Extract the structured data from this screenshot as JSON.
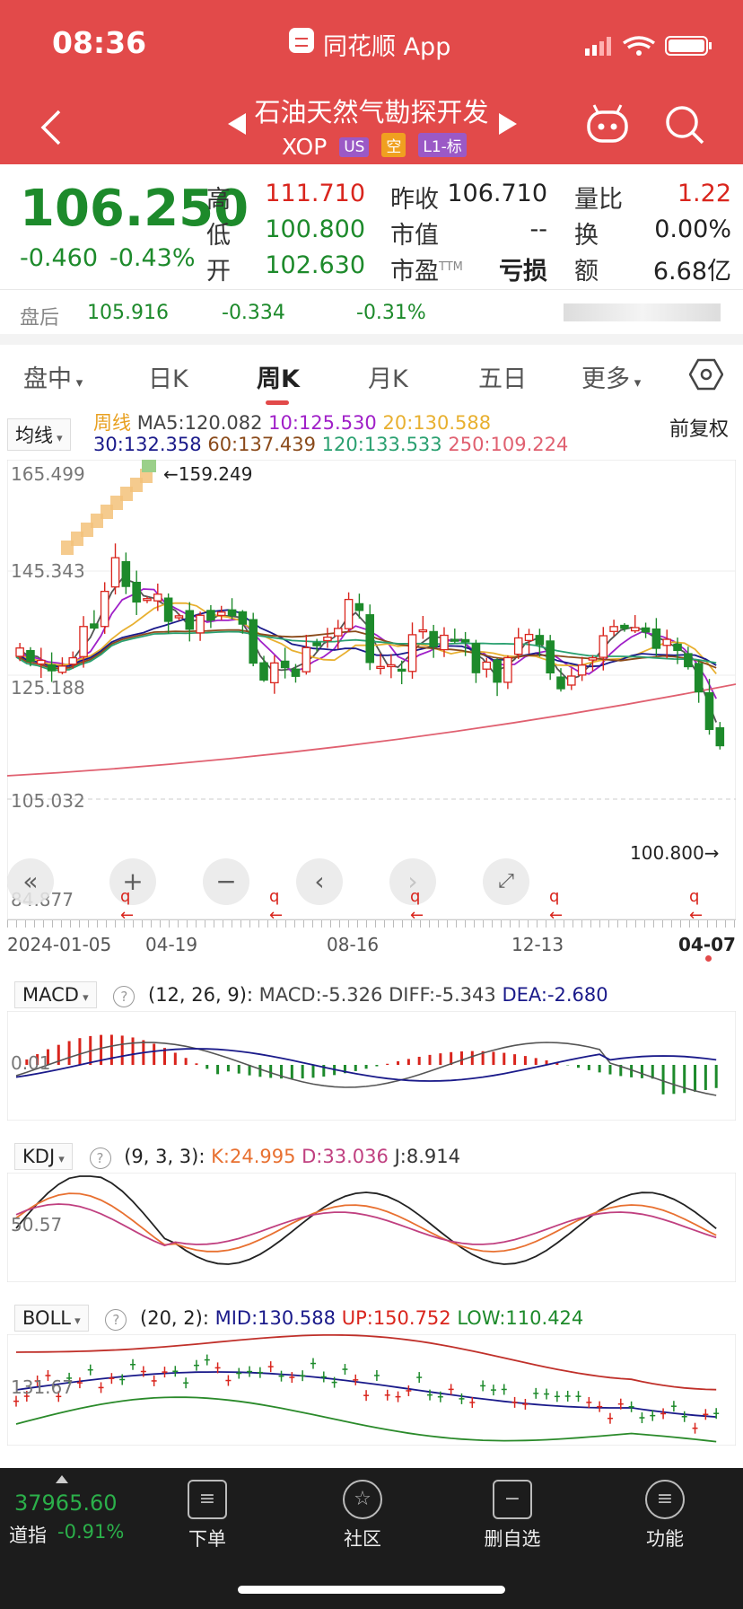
{
  "status": {
    "time": "08:36",
    "app_name": "同花顺 App"
  },
  "header": {
    "back_icon": "chevron-left-icon",
    "prev_icon": "triangle-left-icon",
    "next_icon": "triangle-right-icon",
    "title": "石油天然气勘探开发",
    "ticker": "XOP",
    "tags": [
      "US",
      "空",
      "L1-标"
    ],
    "robot_icon": "robot-icon",
    "search_icon": "search-icon"
  },
  "quote": {
    "price": "106.250",
    "change": "-0.460",
    "change_pct": "-0.43%",
    "high_label": "高",
    "high": "111.710",
    "low_label": "低",
    "low": "100.800",
    "open_label": "开",
    "open": "102.630",
    "prev_close_label": "昨收",
    "prev_close": "106.710",
    "mkt_cap_label": "市值",
    "mkt_cap": "--",
    "pe_label": "市盈",
    "pe_sup": "TTM",
    "pe": "亏损",
    "vol_ratio_label": "量比",
    "vol_ratio": "1.22",
    "turnover_label": "换",
    "turnover": "0.00%",
    "amount_label": "额",
    "amount": "6.68亿"
  },
  "after_hours": {
    "label": "盘后",
    "price": "105.916",
    "change": "-0.334",
    "change_pct": "-0.31%"
  },
  "tabs": {
    "intraday": "盘中",
    "daily": "日K",
    "weekly": "周K",
    "monthly": "月K",
    "five_day": "五日",
    "more": "更多",
    "settings_icon": "hexagon-gear-icon"
  },
  "ma": {
    "selector": "均线",
    "period": "周线",
    "ma5": "MA5:120.082",
    "ma10": "10:125.530",
    "ma20": "20:130.588",
    "ma30": "30:132.358",
    "ma60": "60:137.439",
    "ma120": "120:133.533",
    "ma250": "250:109.224",
    "adjust": "前复权"
  },
  "price_axis": {
    "y1": "165.499",
    "y2": "145.343",
    "y3": "125.188",
    "y4": "105.032",
    "y5": "84.877"
  },
  "annotations": {
    "high": "159.249",
    "low": "100.800"
  },
  "date_axis": {
    "d1": "2024-01-05",
    "d2": "04-19",
    "d3": "08-16",
    "d4": "12-13",
    "d5": "04-07"
  },
  "macd": {
    "selector": "MACD",
    "params": "(12, 26, 9):",
    "macd": "MACD:-5.326",
    "diff": "DIFF:-5.343",
    "dea": "DEA:-2.680",
    "axis": "0.01"
  },
  "kdj": {
    "selector": "KDJ",
    "params": "(9, 3, 3):",
    "k": "K:24.995",
    "d": "D:33.036",
    "j": "J:8.914",
    "axis": "50.57"
  },
  "boll": {
    "selector": "BOLL",
    "params": "(20, 2):",
    "mid": "MID:130.588",
    "up": "UP:150.752",
    "low": "LOW:110.424",
    "axis": "131.67"
  },
  "bottom": {
    "index_value": "37965.60",
    "index_name": "道指",
    "index_change": "-0.91%",
    "order": "下单",
    "community": "社区",
    "remove_watch": "删自选",
    "functions": "功能"
  },
  "colors": {
    "up": "#d9251d",
    "down": "#1d8a2b",
    "header": "#e24a4a"
  }
}
